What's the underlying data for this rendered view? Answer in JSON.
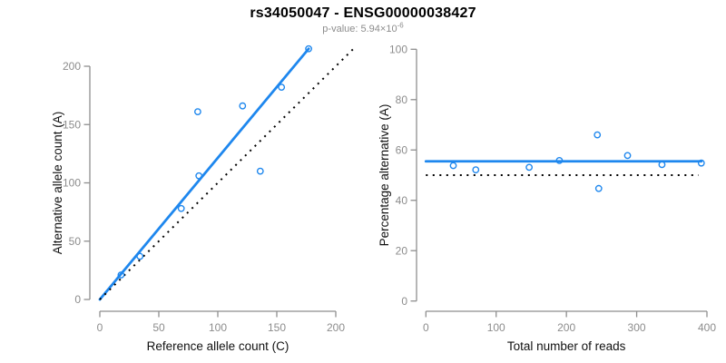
{
  "header": {
    "title": "rs34050047 - ENSG00000038427",
    "pvalue_prefix": "p-value: 5.94×10",
    "pvalue_exponent": "-6"
  },
  "colors": {
    "accent_blue": "#1E87EE",
    "axis_gray": "#8E8E8E",
    "tick_label_gray": "#8C8C8C",
    "label_black": "#111111",
    "subtitle_gray": "#8C8C8C",
    "identity_black": "#000000"
  },
  "chart_data": [
    {
      "type": "scatter",
      "name": "allele-count-plot",
      "title": "",
      "xlabel": "Reference allele count (C)",
      "ylabel": "Alternative allele count (A)",
      "xlim": [
        0,
        200
      ],
      "ylim": [
        0,
        200
      ],
      "xticks": [
        0,
        50,
        100,
        150,
        200
      ],
      "yticks": [
        0,
        50,
        100,
        150,
        200
      ],
      "grid": false,
      "legend": null,
      "points": [
        [
          18,
          21
        ],
        [
          34,
          37
        ],
        [
          69,
          78
        ],
        [
          84,
          106
        ],
        [
          83,
          161
        ],
        [
          136,
          110
        ],
        [
          121,
          166
        ],
        [
          154,
          182
        ],
        [
          177,
          215
        ]
      ],
      "lines": [
        {
          "name": "fit-line",
          "style": "solid",
          "color": "#1E87EE",
          "x1": 0,
          "y1": 0,
          "x2": 177,
          "y2": 215
        },
        {
          "name": "identity-line",
          "style": "dotted",
          "color": "#000000",
          "x1": 0,
          "y1": 0,
          "x2": 215,
          "y2": 215
        }
      ]
    },
    {
      "type": "scatter",
      "name": "percentage-reads-plot",
      "title": "",
      "xlabel": "Total number of reads",
      "ylabel": "Percentage alternative (A)",
      "xlim": [
        0,
        400
      ],
      "ylim": [
        0,
        100
      ],
      "xticks": [
        0,
        100,
        200,
        300,
        400
      ],
      "yticks": [
        0,
        20,
        40,
        60,
        80,
        100
      ],
      "grid": false,
      "legend": null,
      "points": [
        [
          39,
          53.8
        ],
        [
          71,
          52.1
        ],
        [
          147,
          53.1
        ],
        [
          190,
          55.8
        ],
        [
          244,
          66.0
        ],
        [
          246,
          44.7
        ],
        [
          287,
          57.8
        ],
        [
          336,
          54.2
        ],
        [
          392,
          54.8
        ]
      ],
      "lines": [
        {
          "name": "fit-line",
          "style": "solid",
          "color": "#1E87EE",
          "x1": 0,
          "y1": 55.5,
          "x2": 392,
          "y2": 55.5
        },
        {
          "name": "reference-50pct-line",
          "style": "dotted",
          "color": "#000000",
          "x1": 0,
          "y1": 50,
          "x2": 388,
          "y2": 50
        }
      ]
    }
  ]
}
